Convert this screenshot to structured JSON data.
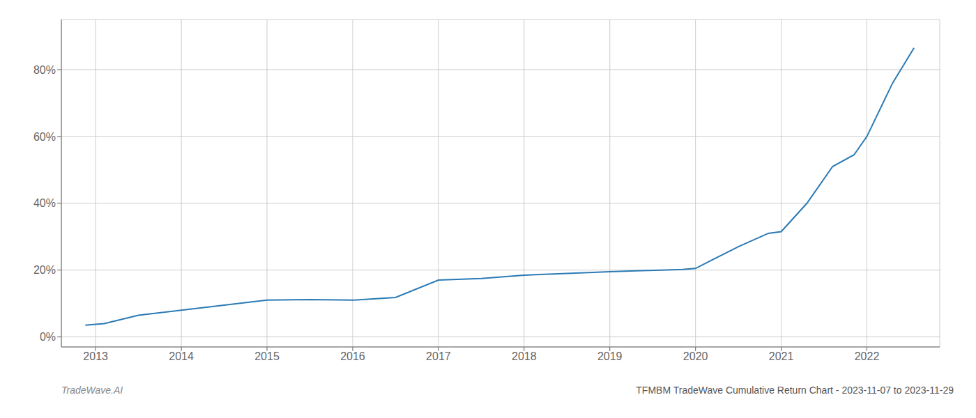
{
  "chart_data": {
    "type": "line",
    "title": "TFMBM TradeWave Cumulative Return Chart - 2023-11-07 to 2023-11-29",
    "annotations": [
      "TradeWave.AI"
    ],
    "x": [
      2012.88,
      2013.1,
      2013.5,
      2014.0,
      2014.5,
      2015.0,
      2015.5,
      2016.0,
      2016.5,
      2017.0,
      2017.5,
      2018.0,
      2018.5,
      2019.0,
      2019.3,
      2019.6,
      2019.85,
      2020.0,
      2020.5,
      2020.85,
      2021.0,
      2021.3,
      2021.6,
      2021.85,
      2022.0,
      2022.3,
      2022.55
    ],
    "values": [
      3.5,
      4.0,
      6.5,
      8.0,
      9.5,
      11.0,
      11.2,
      11.0,
      11.8,
      17.0,
      17.5,
      18.5,
      19.0,
      19.5,
      19.8,
      20.0,
      20.2,
      20.5,
      27.0,
      31.0,
      31.5,
      40.0,
      51.0,
      54.5,
      60.0,
      76.0,
      86.5
    ],
    "color": "#2a7ab5",
    "xlim": [
      2012.6,
      2022.85
    ],
    "ylim": [
      -3,
      95
    ],
    "xticks": [
      2013,
      2014,
      2015,
      2016,
      2017,
      2018,
      2019,
      2020,
      2021,
      2022
    ],
    "yticks": [
      {
        "value": 0,
        "label": "0%"
      },
      {
        "value": 20,
        "label": "20%"
      },
      {
        "value": 40,
        "label": "40%"
      },
      {
        "value": 60,
        "label": "60%"
      },
      {
        "value": 80,
        "label": "80%"
      }
    ],
    "grid": true
  }
}
